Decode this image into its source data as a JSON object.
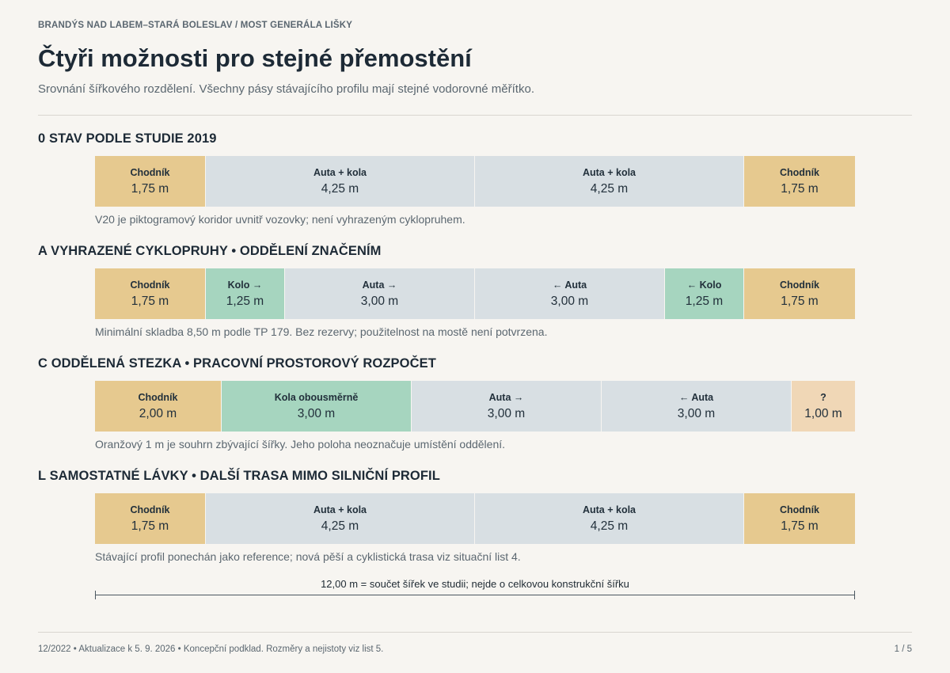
{
  "header": {
    "kicker": "BRANDÝS NAD LABEM–STARÁ BOLESLAV / MOST GENERÁLA LIŠKY",
    "title": "Čtyři možnosti pro stejné přemostění",
    "subtitle": "Srovnání šířkového rozdělení. Všechny pásy stávajícího profilu mají stejné vodorovné měřítko."
  },
  "scale_total_m": 12.0,
  "variants": [
    {
      "heading": "0 STAV PODLE STUDIE 2019",
      "bands": [
        {
          "label": "Chodník",
          "width": "1,75 m",
          "meters": 1.75,
          "type": "walk"
        },
        {
          "label": "Auta + kola",
          "width": "4,25 m",
          "meters": 4.25,
          "type": "car"
        },
        {
          "label": "Auta + kola",
          "width": "4,25 m",
          "meters": 4.25,
          "type": "car"
        },
        {
          "label": "Chodník",
          "width": "1,75 m",
          "meters": 1.75,
          "type": "walk"
        }
      ],
      "note": "V20 je piktogramový koridor uvnitř vozovky; není vyhrazeným cyklopruhem."
    },
    {
      "heading": "A VYHRAZENÉ CYKLOPRUHY • ODDĚLENÍ ZNAČENÍM",
      "bands": [
        {
          "label": "Chodník",
          "width": "1,75 m",
          "meters": 1.75,
          "type": "walk"
        },
        {
          "label": "Kolo →",
          "width": "1,25 m",
          "meters": 1.25,
          "type": "bike"
        },
        {
          "label": "Auta →",
          "width": "3,00 m",
          "meters": 3.0,
          "type": "car"
        },
        {
          "label": "← Auta",
          "width": "3,00 m",
          "meters": 3.0,
          "type": "car"
        },
        {
          "label": "← Kolo",
          "width": "1,25 m",
          "meters": 1.25,
          "type": "bike"
        },
        {
          "label": "Chodník",
          "width": "1,75 m",
          "meters": 1.75,
          "type": "walk"
        }
      ],
      "note": "Minimální skladba 8,50 m podle TP 179. Bez rezervy; použitelnost na mostě není potvrzena."
    },
    {
      "heading": "C ODDĚLENÁ STEZKA • PRACOVNÍ PROSTOROVÝ ROZPOČET",
      "bands": [
        {
          "label": "Chodník",
          "width": "2,00 m",
          "meters": 2.0,
          "type": "walk"
        },
        {
          "label": "Kola obousměrně",
          "width": "3,00 m",
          "meters": 3.0,
          "type": "bike"
        },
        {
          "label": "Auta →",
          "width": "3,00 m",
          "meters": 3.0,
          "type": "car"
        },
        {
          "label": "← Auta",
          "width": "3,00 m",
          "meters": 3.0,
          "type": "car"
        },
        {
          "label": "?",
          "width": "1,00 m",
          "meters": 1.0,
          "type": "unknown"
        }
      ],
      "note": "Oranžový 1 m je souhrn zbývající šířky. Jeho poloha neoznačuje umístění oddělení."
    },
    {
      "heading": "L SAMOSTATNÉ LÁVKY • DALŠÍ TRASA MIMO SILNIČNÍ PROFIL",
      "bands": [
        {
          "label": "Chodník",
          "width": "1,75 m",
          "meters": 1.75,
          "type": "walk"
        },
        {
          "label": "Auta + kola",
          "width": "4,25 m",
          "meters": 4.25,
          "type": "car"
        },
        {
          "label": "Auta + kola",
          "width": "4,25 m",
          "meters": 4.25,
          "type": "car"
        },
        {
          "label": "Chodník",
          "width": "1,75 m",
          "meters": 1.75,
          "type": "walk"
        }
      ],
      "note": "Stávající profil ponechán jako reference; nová pěší a cyklistická trasa viz situační list 4."
    }
  ],
  "scale": {
    "caption": "12,00 m = součet šířek ve studii; nejde o celkovou konstrukční šířku"
  },
  "footer": {
    "text": "12/2022 • Aktualizace k 5. 9. 2026 • Koncepční podklad. Rozměry a nejistoty viz list 5.",
    "page": "1 / 5"
  }
}
